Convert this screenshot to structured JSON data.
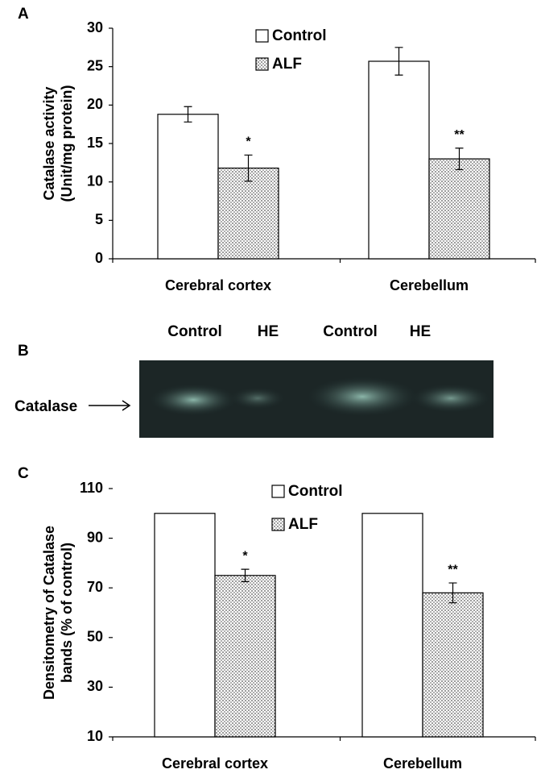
{
  "chart_data": [
    {
      "type": "bar",
      "panel_label": "A",
      "ylabel": [
        "Catalase activity",
        "(Unit/mg protein)"
      ],
      "categories": [
        "Cerebral cortex",
        "Cerebellum"
      ],
      "series": [
        {
          "name": "Control",
          "color": "#ffffff",
          "values": [
            18.8,
            25.7
          ],
          "errors": [
            1.0,
            1.8
          ]
        },
        {
          "name": "ALF",
          "color": "#d0d0d0",
          "pattern": "dots",
          "values": [
            11.8,
            13.0
          ],
          "errors": [
            1.7,
            1.4
          ],
          "annotations": [
            "*",
            "**"
          ]
        }
      ],
      "ylim": [
        0,
        30
      ],
      "yticks": [
        0,
        5,
        10,
        15,
        20,
        25,
        30
      ]
    },
    {
      "type": "bar",
      "panel_label": "C",
      "ylabel": [
        "Densitometry of Catalase",
        "bands  (% of control)"
      ],
      "categories": [
        "Cerebral cortex",
        "Cerebellum"
      ],
      "series": [
        {
          "name": "Control",
          "color": "#ffffff",
          "values": [
            100,
            100
          ]
        },
        {
          "name": "ALF",
          "color": "#d0d0d0",
          "pattern": "dots",
          "values": [
            75,
            68
          ],
          "errors": [
            2.5,
            4
          ],
          "annotations": [
            "*",
            "**"
          ]
        }
      ],
      "ylim": [
        10,
        110
      ],
      "yticks": [
        10,
        30,
        50,
        70,
        90,
        110
      ]
    }
  ],
  "gel": {
    "panel_label": "B",
    "lanes": [
      "Control",
      "HE",
      "Control",
      "HE"
    ],
    "band_label": "Catalase"
  }
}
